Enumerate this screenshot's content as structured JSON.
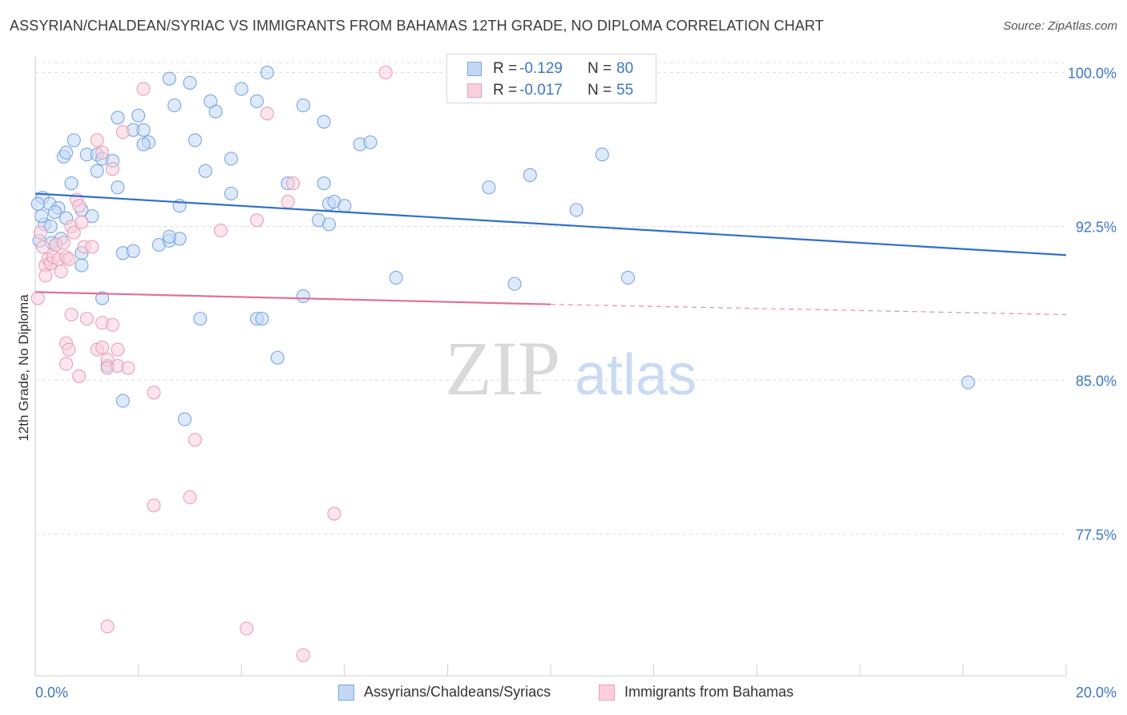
{
  "title": "ASSYRIAN/CHALDEAN/SYRIAC VS IMMIGRANTS FROM BAHAMAS 12TH GRADE, NO DIPLOMA CORRELATION CHART",
  "source": "Source: ZipAtlas.com",
  "watermark": {
    "zip": "ZIP",
    "atlas": "atlas"
  },
  "stats": [
    {
      "r_label": "R =",
      "r_value": "-0.129",
      "n_label": "N =",
      "n_value": "80",
      "color": "#a7c8f2",
      "border": "#6a9de0"
    },
    {
      "r_label": "R =",
      "r_value": "-0.017",
      "n_label": "N =",
      "n_value": "55",
      "color": "#f7c2d3",
      "border": "#e98aa8"
    }
  ],
  "legend": [
    {
      "label": "Assyrians/Chaldeans/Syriacs",
      "color": "#c3d8f5",
      "border": "#7aa6e0"
    },
    {
      "label": "Immigrants from Bahamas",
      "color": "#f9cfdc",
      "border": "#e8a0b8"
    }
  ],
  "chart_data": {
    "type": "scatter",
    "title": "ASSYRIAN/CHALDEAN/SYRIAC VS IMMIGRANTS FROM BAHAMAS 12TH GRADE, NO DIPLOMA CORRELATION CHART",
    "xlabel": "",
    "ylabel": "12th Grade, No Diploma",
    "xlim": [
      0,
      20
    ],
    "ylim": [
      70.6,
      100.8
    ],
    "x_tick_labels": [
      "0.0%",
      "20.0%"
    ],
    "x_tick_values": [
      0,
      20
    ],
    "y_tick_labels": [
      "77.5%",
      "85.0%",
      "92.5%",
      "100.0%"
    ],
    "y_tick_values": [
      77.5,
      85.0,
      92.5,
      100.0
    ],
    "grid": true,
    "legend_position": "bottom",
    "series": [
      {
        "name": "Assyrians/Chaldeans/Syriacs",
        "color": "#7aa6e0",
        "fill": "#c3d8f5",
        "trend": {
          "x": [
            0,
            20
          ],
          "y": [
            94.1,
            91.1
          ],
          "color": "#2f6fcb"
        },
        "points": [
          [
            0.14,
            93.9
          ],
          [
            0.28,
            93.6
          ],
          [
            0.45,
            93.4
          ],
          [
            0.18,
            92.6
          ],
          [
            0.32,
            91.7
          ],
          [
            0.5,
            91.9
          ],
          [
            0.38,
            93.2
          ],
          [
            0.6,
            92.9
          ],
          [
            0.9,
            93.3
          ],
          [
            1.1,
            93.0
          ],
          [
            0.55,
            95.9
          ],
          [
            0.7,
            94.6
          ],
          [
            0.6,
            96.1
          ],
          [
            0.75,
            96.7
          ],
          [
            1.0,
            96.0
          ],
          [
            1.2,
            96.0
          ],
          [
            1.3,
            95.8
          ],
          [
            1.5,
            95.7
          ],
          [
            1.2,
            95.2
          ],
          [
            1.6,
            94.4
          ],
          [
            1.6,
            97.8
          ],
          [
            1.9,
            97.2
          ],
          [
            2.1,
            97.2
          ],
          [
            2.2,
            96.6
          ],
          [
            2.1,
            96.5
          ],
          [
            2.0,
            97.9
          ],
          [
            2.6,
            99.7
          ],
          [
            2.7,
            98.4
          ],
          [
            3.0,
            99.5
          ],
          [
            3.5,
            98.1
          ],
          [
            4.0,
            99.2
          ],
          [
            4.3,
            98.6
          ],
          [
            4.5,
            100.0
          ],
          [
            3.4,
            98.6
          ],
          [
            3.1,
            96.7
          ],
          [
            3.3,
            95.2
          ],
          [
            3.8,
            95.8
          ],
          [
            3.8,
            94.1
          ],
          [
            5.2,
            98.4
          ],
          [
            5.6,
            97.6
          ],
          [
            4.9,
            94.6
          ],
          [
            5.6,
            94.6
          ],
          [
            5.7,
            93.6
          ],
          [
            5.8,
            93.7
          ],
          [
            6.0,
            93.5
          ],
          [
            5.5,
            92.8
          ],
          [
            5.7,
            92.6
          ],
          [
            6.3,
            96.5
          ],
          [
            6.5,
            96.6
          ],
          [
            8.8,
            94.4
          ],
          [
            9.6,
            95.0
          ],
          [
            11.0,
            96.0
          ],
          [
            10.5,
            93.3
          ],
          [
            0.9,
            91.2
          ],
          [
            1.7,
            91.2
          ],
          [
            1.9,
            91.3
          ],
          [
            2.4,
            91.6
          ],
          [
            2.6,
            91.8
          ],
          [
            2.8,
            91.9
          ],
          [
            2.6,
            92.0
          ],
          [
            2.8,
            93.5
          ],
          [
            0.9,
            90.6
          ],
          [
            1.3,
            89.0
          ],
          [
            3.2,
            88.0
          ],
          [
            4.3,
            88.0
          ],
          [
            4.4,
            88.0
          ],
          [
            4.7,
            86.1
          ],
          [
            5.2,
            89.1
          ],
          [
            7.0,
            90.0
          ],
          [
            9.3,
            89.7
          ],
          [
            11.5,
            90.0
          ],
          [
            1.4,
            85.7
          ],
          [
            1.7,
            84.0
          ],
          [
            2.9,
            83.1
          ],
          [
            18.1,
            84.9
          ],
          [
            0.05,
            93.6
          ],
          [
            0.12,
            93.0
          ],
          [
            0.3,
            92.5
          ],
          [
            0.08,
            91.8
          ],
          [
            0.4,
            91.6
          ]
        ]
      },
      {
        "name": "Immigrants from Bahamas",
        "color": "#e8a0b8",
        "fill": "#f9cfdc",
        "trend": {
          "x": [
            0,
            10
          ],
          "y": [
            89.3,
            88.7
          ],
          "color": "#e07096",
          "dashed_to": [
            20,
            88.2
          ]
        },
        "points": [
          [
            0.05,
            89.0
          ],
          [
            0.1,
            92.2
          ],
          [
            0.15,
            91.5
          ],
          [
            0.2,
            90.6
          ],
          [
            0.25,
            90.9
          ],
          [
            0.3,
            90.7
          ],
          [
            0.35,
            91.0
          ],
          [
            0.4,
            91.6
          ],
          [
            0.45,
            90.9
          ],
          [
            0.5,
            90.3
          ],
          [
            0.55,
            91.7
          ],
          [
            0.6,
            91.0
          ],
          [
            0.65,
            90.9
          ],
          [
            0.7,
            92.5
          ],
          [
            0.75,
            92.2
          ],
          [
            0.8,
            93.8
          ],
          [
            0.85,
            93.5
          ],
          [
            0.9,
            92.7
          ],
          [
            0.95,
            91.5
          ],
          [
            1.1,
            91.5
          ],
          [
            1.2,
            96.7
          ],
          [
            1.3,
            96.1
          ],
          [
            1.5,
            95.3
          ],
          [
            1.7,
            97.1
          ],
          [
            2.1,
            99.2
          ],
          [
            3.6,
            92.3
          ],
          [
            4.3,
            92.8
          ],
          [
            4.5,
            98.0
          ],
          [
            4.9,
            93.7
          ],
          [
            5.0,
            94.6
          ],
          [
            6.8,
            100.0
          ],
          [
            0.7,
            88.2
          ],
          [
            1.0,
            88.0
          ],
          [
            1.3,
            87.8
          ],
          [
            1.5,
            87.7
          ],
          [
            0.6,
            86.8
          ],
          [
            0.65,
            86.5
          ],
          [
            0.6,
            85.8
          ],
          [
            0.85,
            85.2
          ],
          [
            1.2,
            86.5
          ],
          [
            1.3,
            86.6
          ],
          [
            1.4,
            86.0
          ],
          [
            1.4,
            85.6
          ],
          [
            1.6,
            85.7
          ],
          [
            1.6,
            86.5
          ],
          [
            2.3,
            84.4
          ],
          [
            3.1,
            82.1
          ],
          [
            2.3,
            78.9
          ],
          [
            3.0,
            79.3
          ],
          [
            5.8,
            78.5
          ],
          [
            1.4,
            73.0
          ],
          [
            4.1,
            72.9
          ],
          [
            5.2,
            71.6
          ],
          [
            1.8,
            85.6
          ],
          [
            0.2,
            90.1
          ]
        ]
      }
    ]
  }
}
